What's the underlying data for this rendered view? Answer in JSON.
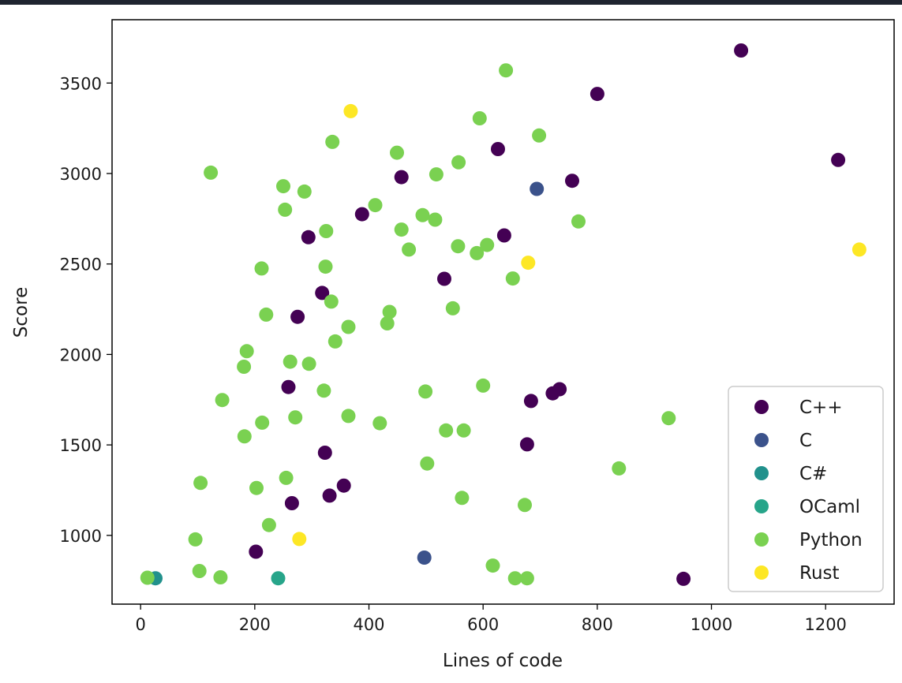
{
  "chart_data": {
    "type": "scatter",
    "title": "",
    "xlabel": "Lines of code",
    "ylabel": "Score",
    "xlim": [
      -50,
      1320
    ],
    "ylim": [
      620,
      3850
    ],
    "xticks": [
      0,
      200,
      400,
      600,
      800,
      1000,
      1200
    ],
    "yticks": [
      1000,
      1500,
      2000,
      2500,
      3000,
      3500
    ],
    "grid": false,
    "legend_position": "lower-right",
    "series": [
      {
        "name": "C++",
        "color": "#440154",
        "points": [
          [
            1052,
            3680
          ],
          [
            800,
            3440
          ],
          [
            1222,
            3075
          ],
          [
            626,
            3135
          ],
          [
            457,
            2980
          ],
          [
            756,
            2960
          ],
          [
            388,
            2775
          ],
          [
            294,
            2648
          ],
          [
            637,
            2658
          ],
          [
            532,
            2418
          ],
          [
            318,
            2340
          ],
          [
            275,
            2208
          ],
          [
            259,
            1820
          ],
          [
            323,
            1457
          ],
          [
            684,
            1743
          ],
          [
            722,
            1785
          ],
          [
            734,
            1808
          ],
          [
            677,
            1503
          ],
          [
            356,
            1275
          ],
          [
            331,
            1220
          ],
          [
            265,
            1178
          ],
          [
            202,
            910
          ],
          [
            951,
            760
          ]
        ]
      },
      {
        "name": "C",
        "color": "#3b528b",
        "points": [
          [
            694,
            2915
          ],
          [
            497,
            877
          ]
        ]
      },
      {
        "name": "C#",
        "color": "#21918c",
        "points": [
          [
            26,
            763
          ]
        ]
      },
      {
        "name": "OCaml",
        "color": "#27a58a",
        "points": [
          [
            241,
            763
          ]
        ]
      },
      {
        "name": "Python",
        "color": "#7ad151",
        "points": [
          [
            640,
            3570
          ],
          [
            594,
            3305
          ],
          [
            698,
            3210
          ],
          [
            336,
            3175
          ],
          [
            449,
            3115
          ],
          [
            123,
            3005
          ],
          [
            557,
            3062
          ],
          [
            518,
            2995
          ],
          [
            250,
            2930
          ],
          [
            287,
            2900
          ],
          [
            253,
            2800
          ],
          [
            411,
            2825
          ],
          [
            494,
            2770
          ],
          [
            516,
            2745
          ],
          [
            767,
            2735
          ],
          [
            457,
            2690
          ],
          [
            325,
            2682
          ],
          [
            470,
            2580
          ],
          [
            556,
            2598
          ],
          [
            607,
            2605
          ],
          [
            589,
            2560
          ],
          [
            212,
            2475
          ],
          [
            324,
            2485
          ],
          [
            652,
            2420
          ],
          [
            334,
            2292
          ],
          [
            547,
            2255
          ],
          [
            436,
            2235
          ],
          [
            220,
            2220
          ],
          [
            364,
            2152
          ],
          [
            432,
            2172
          ],
          [
            341,
            2072
          ],
          [
            186,
            2018
          ],
          [
            181,
            1932
          ],
          [
            262,
            1960
          ],
          [
            295,
            1948
          ],
          [
            143,
            1748
          ],
          [
            321,
            1800
          ],
          [
            499,
            1795
          ],
          [
            600,
            1828
          ],
          [
            213,
            1623
          ],
          [
            271,
            1652
          ],
          [
            364,
            1660
          ],
          [
            419,
            1620
          ],
          [
            535,
            1580
          ],
          [
            566,
            1580
          ],
          [
            182,
            1547
          ],
          [
            925,
            1648
          ],
          [
            838,
            1370
          ],
          [
            502,
            1397
          ],
          [
            255,
            1318
          ],
          [
            105,
            1290
          ],
          [
            203,
            1262
          ],
          [
            563,
            1207
          ],
          [
            673,
            1168
          ],
          [
            225,
            1057
          ],
          [
            96,
            978
          ],
          [
            103,
            803
          ],
          [
            617,
            833
          ],
          [
            140,
            768
          ],
          [
            12,
            766
          ],
          [
            656,
            763
          ],
          [
            677,
            763
          ]
        ]
      },
      {
        "name": "Rust",
        "color": "#fde725",
        "points": [
          [
            368,
            3345
          ],
          [
            679,
            2507
          ],
          [
            1259,
            2580
          ],
          [
            278,
            980
          ]
        ]
      }
    ]
  }
}
